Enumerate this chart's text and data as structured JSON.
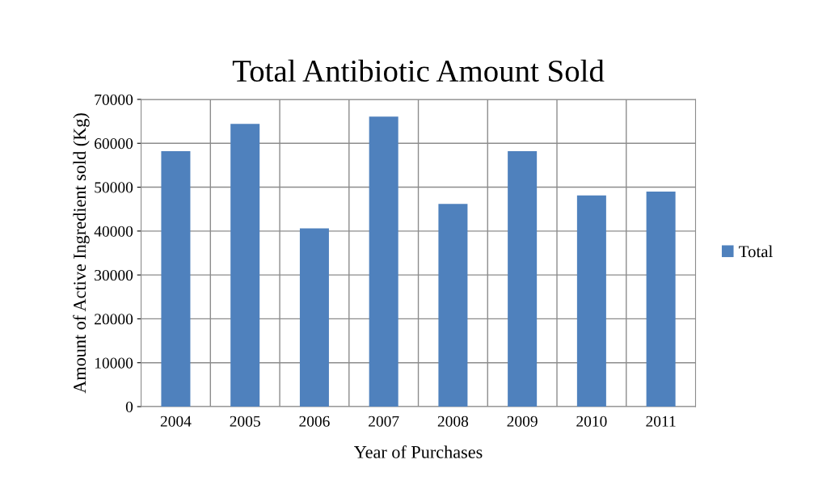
{
  "chart_data": {
    "type": "bar",
    "title": "Total Antibiotic Amount Sold",
    "xlabel": "Year of Purchases",
    "ylabel": "Amount of Active Ingredient sold (Kg)",
    "categories": [
      "2004",
      "2005",
      "2006",
      "2007",
      "2008",
      "2009",
      "2010",
      "2011"
    ],
    "series": [
      {
        "name": "Total",
        "color": "#4f81bd",
        "values": [
          58200,
          64400,
          40600,
          66100,
          46200,
          58200,
          48100,
          49000
        ]
      }
    ],
    "ylim": [
      0,
      70000
    ],
    "yticks": [
      0,
      10000,
      20000,
      30000,
      40000,
      50000,
      60000,
      70000
    ],
    "grid": true,
    "legend": "right"
  }
}
